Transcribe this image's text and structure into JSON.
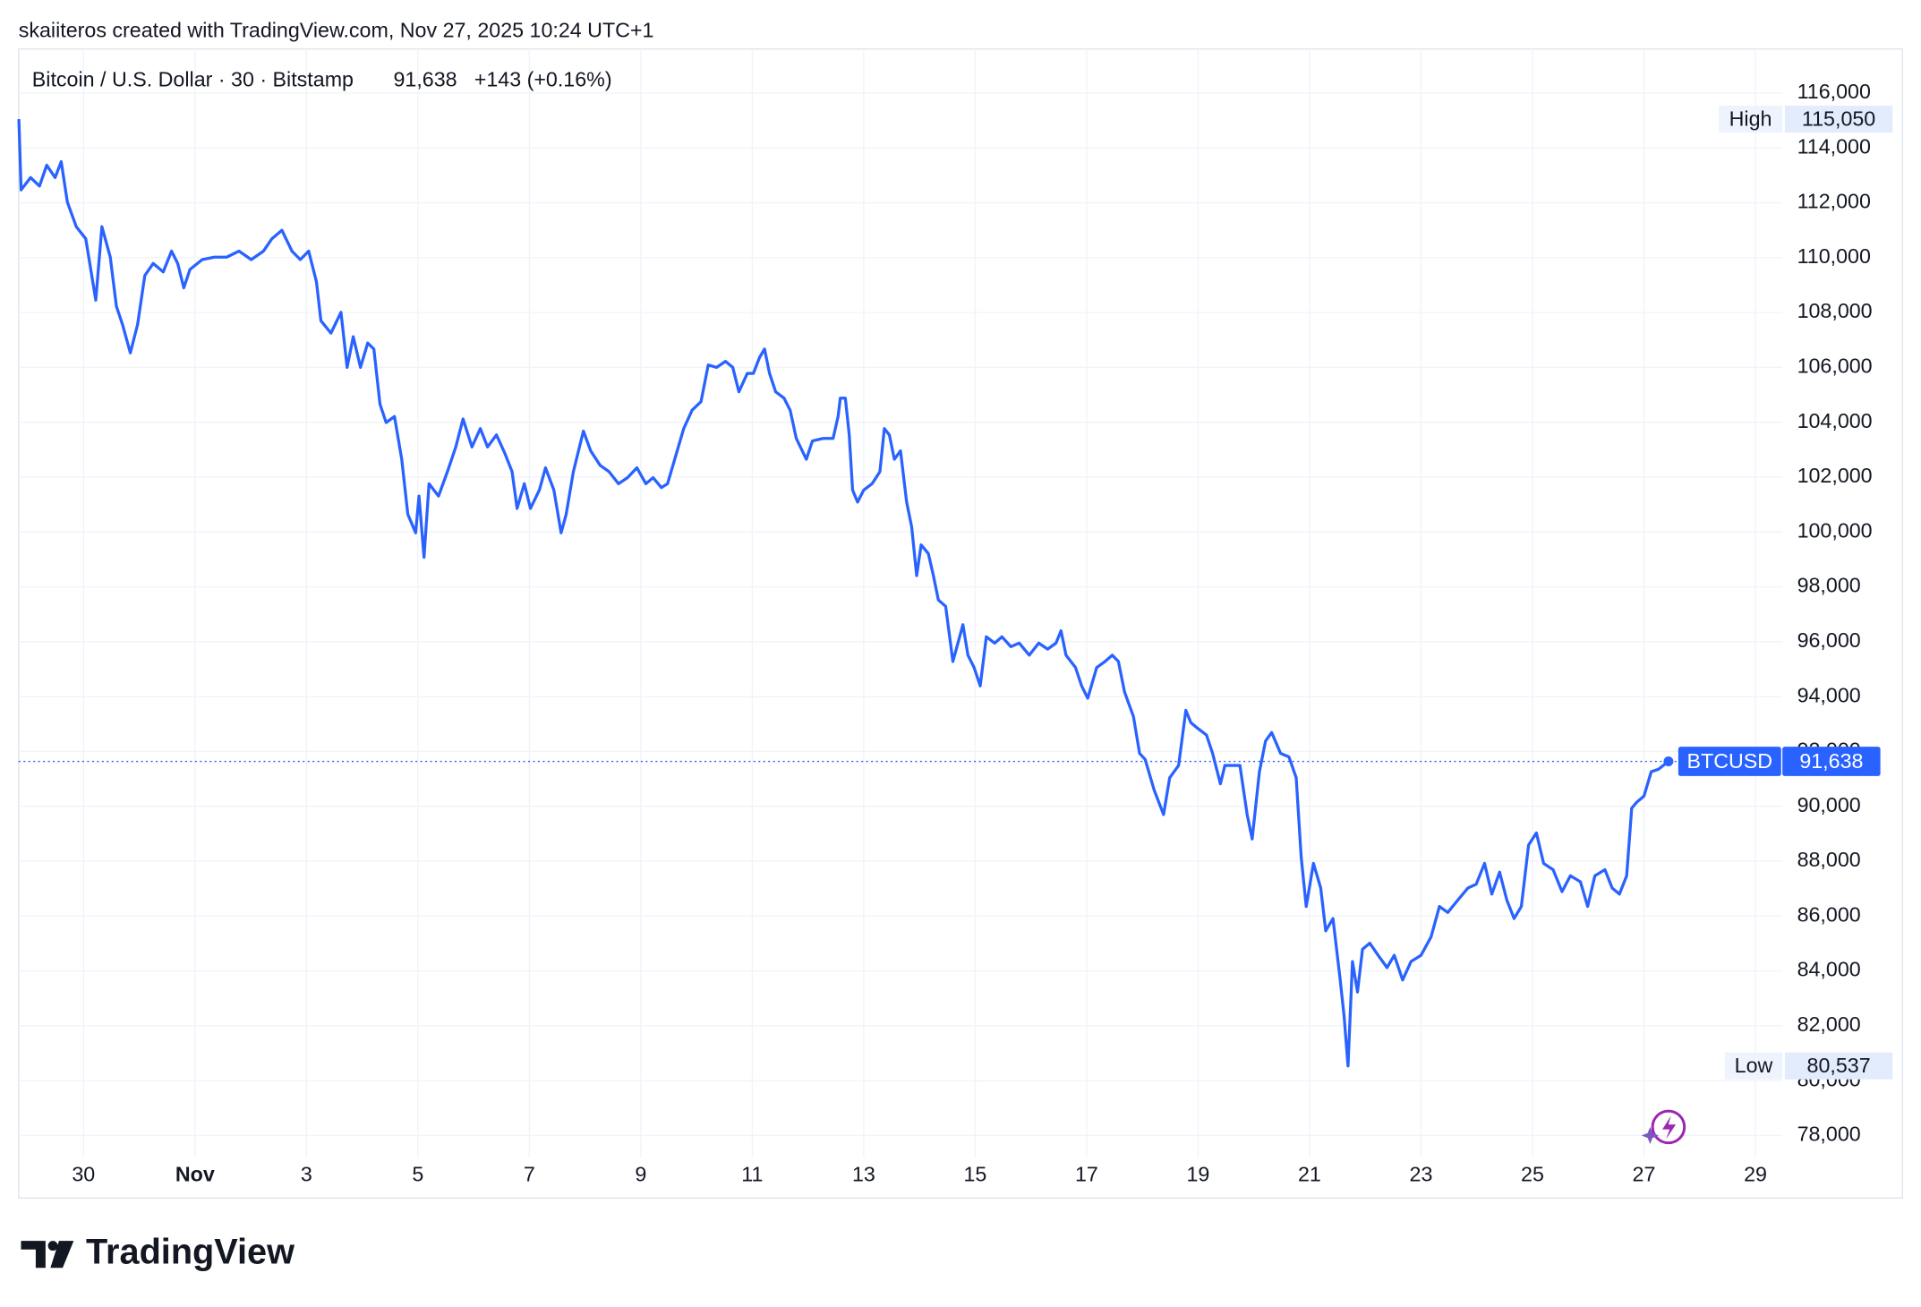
{
  "header": "skaiiteros created with TradingView.com, Nov 27, 2025 10:24 UTC+1",
  "logo": "TradingView",
  "chart_data": {
    "type": "line",
    "legend": {
      "symbol": "Bitcoin / U.S. Dollar · 30 · Bitstamp",
      "price": "91,638",
      "change": "+143 (+0.16%)"
    },
    "xlim": [
      28.835,
      60.484
    ],
    "ylim": [
      77196,
      117607
    ],
    "grid": true,
    "xticks": [
      30,
      {
        "value": 32,
        "label": "Nov"
      },
      {
        "value": 34,
        "label": "3"
      },
      {
        "value": 36,
        "label": "5"
      },
      {
        "value": 38,
        "label": "7"
      },
      {
        "value": 40,
        "label": "9"
      },
      {
        "value": 42,
        "label": "11"
      },
      {
        "value": 44,
        "label": "13"
      },
      {
        "value": 46,
        "label": "15"
      },
      {
        "value": 48,
        "label": "17"
      },
      {
        "value": 50,
        "label": "19"
      },
      {
        "value": 52,
        "label": "21"
      },
      {
        "value": 54,
        "label": "23"
      },
      {
        "value": 56,
        "label": "25"
      },
      {
        "value": 58,
        "label": "27"
      },
      {
        "value": 60,
        "label": "29"
      }
    ],
    "yticks": [
      {
        "value": 78000,
        "label": "78,000"
      },
      {
        "value": 80000,
        "label": "80,000"
      },
      {
        "value": 82000,
        "label": "82,000"
      },
      {
        "value": 84000,
        "label": "84,000"
      },
      {
        "value": 86000,
        "label": "86,000"
      },
      {
        "value": 88000,
        "label": "88,000"
      },
      {
        "value": 90000,
        "label": "90,000"
      },
      {
        "value": 92000,
        "label": "92,000"
      },
      {
        "value": 94000,
        "label": "94,000"
      },
      {
        "value": 96000,
        "label": "96,000"
      },
      {
        "value": 98000,
        "label": "98,000"
      },
      {
        "value": 100000,
        "label": "100,000"
      },
      {
        "value": 102000,
        "label": "102,000"
      },
      {
        "value": 104000,
        "label": "104,000"
      },
      {
        "value": 106000,
        "label": "106,000"
      },
      {
        "value": 108000,
        "label": "108,000"
      },
      {
        "value": 110000,
        "label": "110,000"
      },
      {
        "value": 112000,
        "label": "112,000"
      },
      {
        "value": 114000,
        "label": "114,000"
      },
      {
        "value": 116000,
        "label": "116,000"
      }
    ],
    "annotations": {
      "high": {
        "text": "High",
        "value": 115050,
        "value_label": "115,050"
      },
      "low": {
        "text": "Low",
        "value": 80537,
        "value_label": "80,537"
      },
      "last": {
        "value": 91638,
        "value_label": "91,638"
      }
    },
    "series": [
      {
        "name": "BTCUSD",
        "color": "#2962ff",
        "x": [
          28.84,
          28.88,
          29.05,
          29.21,
          29.34,
          29.49,
          29.6,
          29.71,
          29.87,
          30.04,
          30.22,
          30.33,
          30.48,
          30.59,
          30.7,
          30.84,
          30.97,
          31.1,
          31.25,
          31.43,
          31.58,
          31.69,
          31.8,
          31.91,
          32.13,
          32.35,
          32.57,
          32.79,
          33.01,
          33.23,
          33.38,
          33.56,
          33.74,
          33.89,
          34.04,
          34.18,
          34.26,
          34.44,
          34.62,
          34.73,
          34.84,
          34.97,
          35.1,
          35.21,
          35.32,
          35.43,
          35.58,
          35.71,
          35.82,
          35.96,
          36.02,
          36.11,
          36.2,
          36.37,
          36.53,
          36.68,
          36.81,
          36.97,
          37.12,
          37.25,
          37.41,
          37.56,
          37.69,
          37.78,
          37.91,
          38.02,
          38.18,
          38.29,
          38.44,
          38.57,
          38.66,
          38.79,
          38.97,
          39.1,
          39.27,
          39.43,
          39.6,
          39.76,
          39.93,
          40.09,
          40.22,
          40.37,
          40.48,
          40.64,
          40.77,
          40.92,
          41.08,
          41.21,
          41.36,
          41.52,
          41.65,
          41.76,
          41.91,
          42.02,
          42.13,
          42.22,
          42.31,
          42.42,
          42.57,
          42.68,
          42.79,
          42.97,
          43.08,
          43.27,
          43.45,
          43.54,
          43.58,
          43.67,
          43.74,
          43.8,
          43.89,
          44.0,
          44.15,
          44.29,
          44.37,
          44.46,
          44.55,
          44.66,
          44.77,
          44.86,
          44.95,
          45.03,
          45.16,
          45.25,
          45.34,
          45.47,
          45.6,
          45.69,
          45.78,
          45.87,
          45.98,
          46.09,
          46.2,
          46.35,
          46.48,
          46.64,
          46.79,
          46.97,
          47.14,
          47.3,
          47.45,
          47.54,
          47.63,
          47.8,
          47.91,
          48.02,
          48.18,
          48.33,
          48.46,
          48.57,
          48.68,
          48.84,
          48.95,
          49.05,
          49.21,
          49.38,
          49.49,
          49.65,
          49.78,
          49.87,
          50.0,
          50.15,
          50.26,
          50.4,
          50.48,
          50.59,
          50.75,
          50.88,
          50.97,
          51.1,
          51.21,
          51.32,
          51.48,
          51.63,
          51.76,
          51.85,
          51.94,
          52.07,
          52.2,
          52.29,
          52.42,
          52.55,
          52.62,
          52.69,
          52.77,
          52.86,
          52.95,
          53.08,
          53.23,
          53.39,
          53.52,
          53.67,
          53.82,
          54.0,
          54.18,
          54.33,
          54.48,
          54.66,
          54.84,
          54.99,
          55.14,
          55.27,
          55.41,
          55.54,
          55.67,
          55.8,
          55.93,
          56.07,
          56.2,
          56.37,
          56.53,
          56.68,
          56.86,
          56.99,
          57.12,
          57.3,
          57.43,
          57.56,
          57.69,
          57.78,
          57.87,
          58.0,
          58.13,
          58.26,
          58.44
        ],
        "values": [
          115050,
          112470,
          112920,
          112610,
          113370,
          112920,
          113500,
          112030,
          111130,
          110690,
          108450,
          111130,
          110020,
          108230,
          107560,
          106530,
          107560,
          109350,
          109790,
          109480,
          110240,
          109790,
          108900,
          109570,
          109930,
          110020,
          110020,
          110240,
          109930,
          110240,
          110690,
          111000,
          110240,
          109930,
          110240,
          109120,
          107700,
          107250,
          108010,
          106000,
          107120,
          106000,
          106890,
          106670,
          104660,
          103990,
          104210,
          102650,
          100640,
          99970,
          101310,
          99080,
          101760,
          101310,
          102200,
          103100,
          104120,
          103100,
          103770,
          103100,
          103540,
          102870,
          102200,
          100860,
          101760,
          100860,
          101530,
          102340,
          101530,
          99970,
          100640,
          102200,
          103680,
          102960,
          102430,
          102200,
          101760,
          101980,
          102340,
          101760,
          101980,
          101620,
          101760,
          102870,
          103770,
          104440,
          104750,
          106090,
          106000,
          106220,
          106000,
          105110,
          105780,
          105780,
          106360,
          106670,
          105780,
          105110,
          104880,
          104440,
          103410,
          102650,
          103320,
          103410,
          103410,
          104210,
          104880,
          104880,
          103540,
          101530,
          101090,
          101530,
          101760,
          102200,
          103770,
          103540,
          102650,
          102960,
          101090,
          100190,
          98410,
          99530,
          99210,
          98410,
          97520,
          97290,
          95280,
          95950,
          96620,
          95510,
          95060,
          94390,
          96180,
          95950,
          96180,
          95820,
          95950,
          95510,
          95950,
          95730,
          95950,
          96400,
          95510,
          95060,
          94390,
          93940,
          95060,
          95280,
          95510,
          95280,
          94170,
          93270,
          91930,
          91710,
          90600,
          89700,
          91040,
          91490,
          93500,
          93050,
          92830,
          92600,
          91930,
          90820,
          91490,
          91490,
          91490,
          89700,
          88810,
          91260,
          92380,
          92690,
          91930,
          91800,
          91040,
          88140,
          86350,
          87920,
          87020,
          85460,
          85910,
          83670,
          82340,
          80537,
          84340,
          83230,
          84790,
          85010,
          84570,
          84120,
          84570,
          83670,
          84340,
          84570,
          85240,
          86350,
          86130,
          86580,
          87020,
          87160,
          87920,
          86800,
          87600,
          86580,
          85910,
          86350,
          88590,
          89030,
          87920,
          87690,
          86890,
          87470,
          87250,
          86350,
          87470,
          87690,
          87020,
          86800,
          87470,
          89930,
          90150,
          90370,
          91260,
          91350,
          91638
        ]
      }
    ]
  }
}
